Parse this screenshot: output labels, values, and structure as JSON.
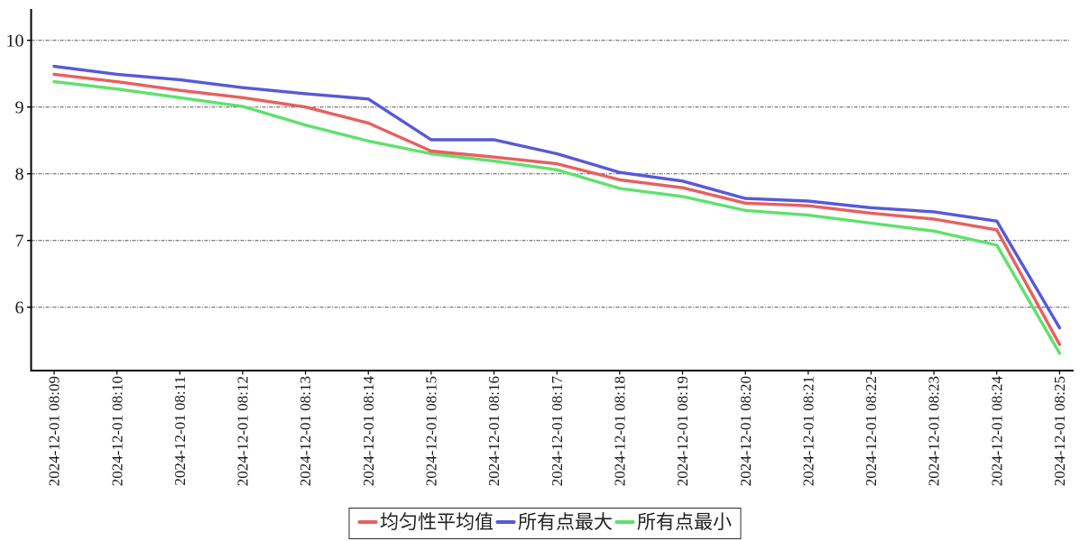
{
  "chart_data": {
    "type": "line",
    "title": "",
    "xlabel": "",
    "ylabel": "",
    "x": [
      "2024-12-01 08:09",
      "2024-12-01 08:10",
      "2024-12-01 08:11",
      "2024-12-01 08:12",
      "2024-12-01 08:13",
      "2024-12-01 08:14",
      "2024-12-01 08:15",
      "2024-12-01 08:16",
      "2024-12-01 08:17",
      "2024-12-01 08:18",
      "2024-12-01 08:19",
      "2024-12-01 08:20",
      "2024-12-01 08:21",
      "2024-12-01 08:22",
      "2024-12-01 08:23",
      "2024-12-01 08:24",
      "2024-12-01 08:25"
    ],
    "series": [
      {
        "name": "均匀性平均值",
        "color": "#e85f5f",
        "values": [
          9.49,
          9.38,
          9.25,
          9.14,
          9.0,
          8.76,
          8.34,
          8.25,
          8.15,
          7.91,
          7.79,
          7.56,
          7.52,
          7.41,
          7.32,
          7.16,
          5.44
        ]
      },
      {
        "name": "所有点最大",
        "color": "#5659d8",
        "values": [
          9.61,
          9.49,
          9.41,
          9.29,
          9.2,
          9.12,
          8.51,
          8.51,
          8.3,
          8.02,
          7.89,
          7.63,
          7.59,
          7.49,
          7.43,
          7.29,
          5.69
        ]
      },
      {
        "name": "所有点最小",
        "color": "#5fe16c",
        "values": [
          9.38,
          9.27,
          9.14,
          9.01,
          8.73,
          8.49,
          8.3,
          8.19,
          8.06,
          7.78,
          7.66,
          7.45,
          7.38,
          7.26,
          7.14,
          6.93,
          5.31
        ]
      }
    ],
    "y_ticks": [
      6,
      7,
      8,
      9,
      10
    ],
    "ylim": [
      5.05,
      10.45
    ],
    "grid": "horizontal-dashed",
    "legend_position": "bottom-center",
    "axis_color": "#000000",
    "background": "#ffffff"
  }
}
